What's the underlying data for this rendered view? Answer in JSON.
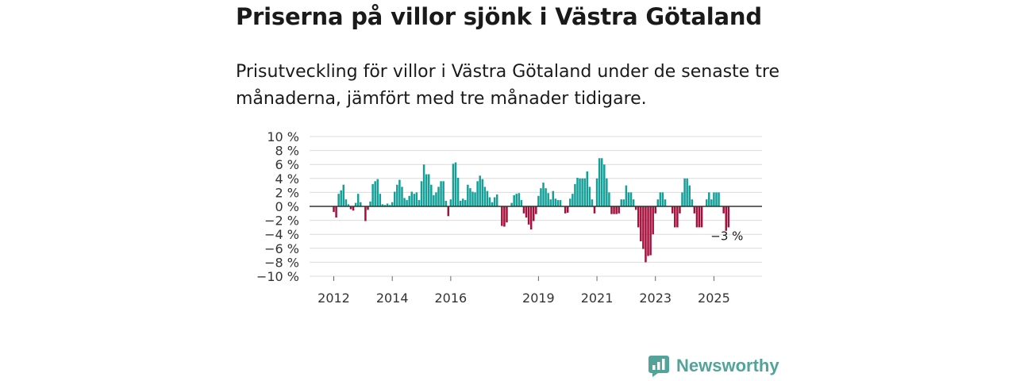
{
  "title": "Priserna på villor sjönk i Västra Götaland",
  "subtitle": "Prisutveckling för villor i Västra Götaland under de senaste tre månaderna, jämfört med tre månader tidigare.",
  "brand": "Newsworthy",
  "colors": {
    "positive": "#14a098",
    "negative": "#a50f3c",
    "grid": "#dcdcdc",
    "zero": "#333333",
    "brand": "#52a49a"
  },
  "chart_data": {
    "type": "bar",
    "title": "Priserna på villor sjönk i Västra Götaland",
    "xlabel": "",
    "ylabel": "",
    "ylim": [
      -10,
      10
    ],
    "yticks": [
      10,
      8,
      6,
      4,
      2,
      0,
      -2,
      -4,
      -6,
      -8,
      -10
    ],
    "ytick_labels": [
      "10 %",
      "8 %",
      "6 %",
      "4 %",
      "2 %",
      "0 %",
      "−2 %",
      "−4 %",
      "−6 %",
      "−8 %",
      "−10 %"
    ],
    "xtick_labels": [
      "2012",
      "2014",
      "2016",
      "2019",
      "2021",
      "2023",
      "2025"
    ],
    "xtick_index": [
      0,
      24,
      48,
      84,
      108,
      132,
      156
    ],
    "annotation": "−3 %",
    "x_start": "2012-01",
    "values": [
      -0.8,
      -1.6,
      1.8,
      2.3,
      3.1,
      1.0,
      0.3,
      -0.4,
      -0.6,
      0.5,
      1.8,
      0.6,
      0,
      -2.1,
      -0.5,
      0.7,
      3.2,
      3.6,
      3.9,
      1.8,
      0.3,
      0.2,
      0.4,
      0.2,
      0.6,
      2.1,
      3.1,
      3.8,
      2.8,
      1.2,
      0.9,
      1.5,
      2.1,
      1.8,
      2.0,
      0.9,
      3.6,
      6.0,
      4.6,
      4.6,
      3.1,
      1.6,
      2.0,
      2.8,
      3.6,
      3.6,
      0.8,
      -1.4,
      1.0,
      6.1,
      6.3,
      4.1,
      0.8,
      1.1,
      0.9,
      3.1,
      2.6,
      2.1,
      2.0,
      3.6,
      4.4,
      3.9,
      2.8,
      2.2,
      1.3,
      0.6,
      1.3,
      1.7,
      0,
      -2.8,
      -2.9,
      -2.3,
      0,
      0.5,
      1.6,
      1.8,
      1.9,
      0.9,
      -1.0,
      -1.6,
      -2.6,
      -3.3,
      -2.1,
      -1.1,
      1.5,
      2.6,
      3.4,
      2.6,
      1.9,
      1.0,
      2.2,
      1.1,
      0.9,
      0.9,
      0,
      -1.0,
      -0.9,
      1.1,
      1.8,
      3.2,
      4.1,
      4.0,
      4.0,
      4.0,
      5.0,
      2.8,
      1.0,
      -1.0,
      4.0,
      6.9,
      6.9,
      6.0,
      4.0,
      2.0,
      -1.1,
      -1.1,
      -1.1,
      -1.0,
      1.0,
      1.0,
      3.0,
      2.0,
      2.0,
      1.0,
      -0.5,
      -3.0,
      -5.0,
      -6.1,
      -8.0,
      -7.1,
      -7.0,
      -4.0,
      -1.0,
      1.0,
      2.0,
      2.0,
      1.0,
      0,
      0,
      -1.0,
      -3.0,
      -3.0,
      -1.0,
      2.0,
      4.0,
      4.0,
      3.0,
      1.0,
      -1.0,
      -3.0,
      -3.0,
      -3.0,
      0,
      1.0,
      2.0,
      1.0,
      2.0,
      2.0,
      2.0,
      0,
      -1.0,
      -3.5,
      -3.0
    ]
  }
}
